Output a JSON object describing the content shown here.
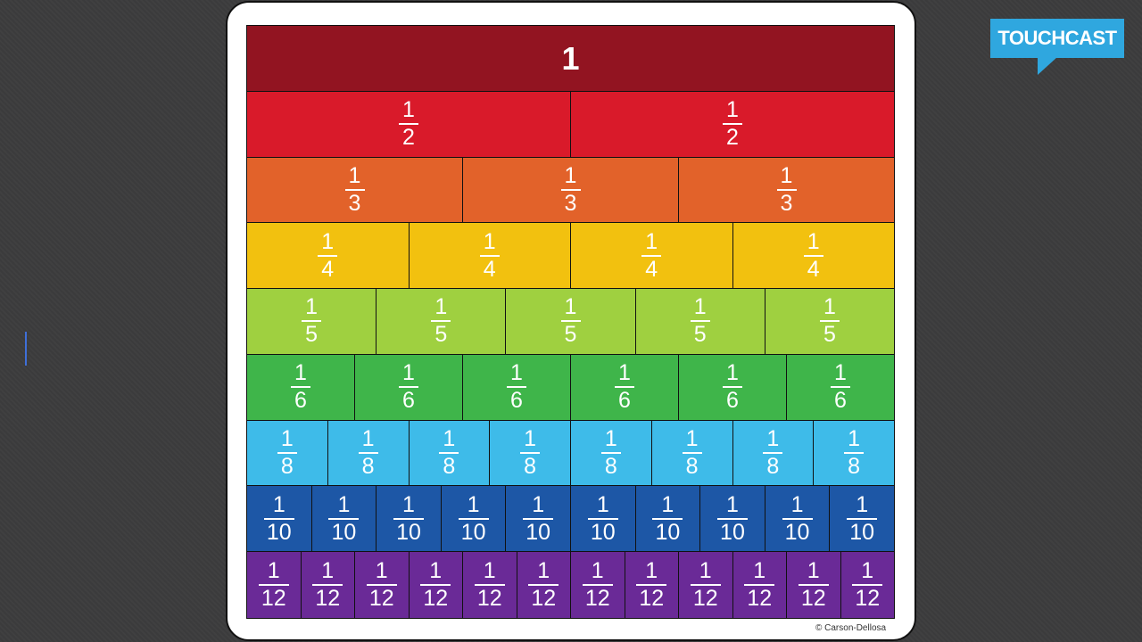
{
  "logo": {
    "text": "TOUCHCAST",
    "color": "#2fa7df"
  },
  "copyright": "© Carson-Dellosa",
  "fraction_chart": {
    "rows": [
      {
        "denominator": 1,
        "label": "1",
        "color": "#921421"
      },
      {
        "denominator": 2,
        "numerator": "1",
        "color": "#d91a2a"
      },
      {
        "denominator": 3,
        "numerator": "1",
        "color": "#e2622a"
      },
      {
        "denominator": 4,
        "numerator": "1",
        "color": "#f2c10f"
      },
      {
        "denominator": 5,
        "numerator": "1",
        "color": "#9fd040"
      },
      {
        "denominator": 6,
        "numerator": "1",
        "color": "#3fb54a"
      },
      {
        "denominator": 8,
        "numerator": "1",
        "color": "#3ebbe9"
      },
      {
        "denominator": 10,
        "numerator": "1",
        "color": "#1d57a6"
      },
      {
        "denominator": 12,
        "numerator": "1",
        "color": "#6a2a97"
      }
    ]
  }
}
